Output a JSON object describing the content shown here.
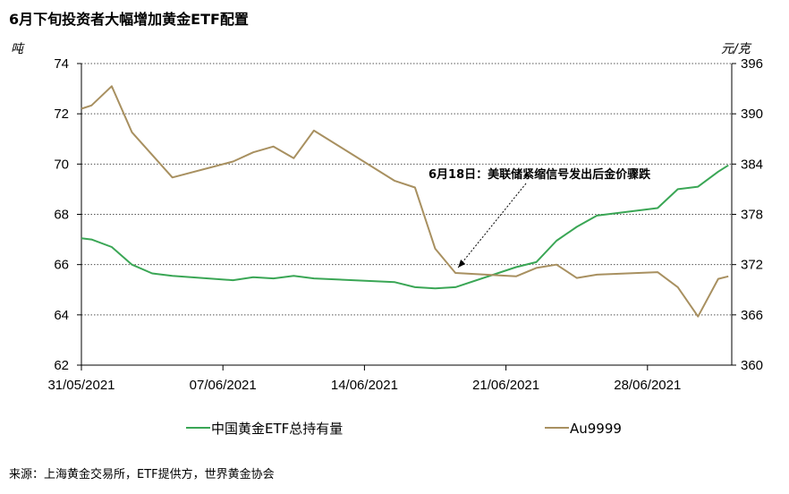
{
  "chart_data": {
    "type": "line",
    "title": "6月下旬投资者大幅增加黄金ETF配置",
    "ylabel_left": "吨",
    "ylabel_right": "元/克",
    "y_left_range": [
      62,
      74
    ],
    "y_left_ticks": [
      "62",
      "64",
      "66",
      "68",
      "70",
      "72",
      "74"
    ],
    "y_right_range": [
      360,
      396
    ],
    "y_right_ticks": [
      "360",
      "366",
      "372",
      "378",
      "384",
      "390",
      "396"
    ],
    "x_range": [
      0,
      31
    ],
    "x_ticks": [
      {
        "day": 0,
        "label": "31/05/2021"
      },
      {
        "day": 7,
        "label": "07/06/2021"
      },
      {
        "day": 14,
        "label": "14/06/2021"
      },
      {
        "day": 21,
        "label": "21/06/2021"
      },
      {
        "day": 28,
        "label": "28/06/2021"
      }
    ],
    "grid": "horizontal-dotted",
    "legend_position": "bottom",
    "series": [
      {
        "name": "中国黄金ETF总持有量",
        "axis": "left",
        "color": "#3aa655",
        "points": [
          [
            0,
            67.05
          ],
          [
            0.5,
            67.0
          ],
          [
            1.5,
            66.7
          ],
          [
            2.5,
            66.0
          ],
          [
            3.5,
            65.65
          ],
          [
            4.5,
            65.55
          ],
          [
            7.5,
            65.38
          ],
          [
            8.5,
            65.5
          ],
          [
            9.5,
            65.45
          ],
          [
            10.5,
            65.55
          ],
          [
            11.5,
            65.45
          ],
          [
            15.5,
            65.3
          ],
          [
            16.5,
            65.1
          ],
          [
            17.5,
            65.05
          ],
          [
            18.5,
            65.1
          ],
          [
            21.5,
            65.9
          ],
          [
            22.5,
            66.1
          ],
          [
            23.5,
            66.95
          ],
          [
            24.5,
            67.5
          ],
          [
            25.5,
            67.95
          ],
          [
            28.5,
            68.25
          ],
          [
            29.5,
            69.0
          ],
          [
            30.5,
            69.1
          ],
          [
            31.5,
            69.7
          ],
          [
            32,
            69.95
          ]
        ]
      },
      {
        "name": "Au9999",
        "axis": "right",
        "color": "#a89060",
        "points": [
          [
            0,
            390.6
          ],
          [
            0.5,
            391.0
          ],
          [
            1.5,
            393.3
          ],
          [
            2.5,
            387.8
          ],
          [
            4.5,
            382.4
          ],
          [
            7.5,
            384.3
          ],
          [
            8.5,
            385.4
          ],
          [
            9.5,
            386.1
          ],
          [
            10.5,
            384.7
          ],
          [
            11.5,
            388.0
          ],
          [
            15.5,
            382.0
          ],
          [
            16.5,
            381.2
          ],
          [
            17.5,
            373.9
          ],
          [
            18.5,
            371.0
          ],
          [
            21.5,
            370.6
          ],
          [
            22.5,
            371.6
          ],
          [
            23.5,
            372.0
          ],
          [
            24.5,
            370.4
          ],
          [
            25.5,
            370.8
          ],
          [
            28.5,
            371.1
          ],
          [
            29.5,
            369.3
          ],
          [
            30.5,
            365.8
          ],
          [
            31.5,
            370.3
          ],
          [
            32,
            370.6
          ]
        ]
      }
    ],
    "annotations": [
      {
        "text": "6月18日：美联储紧缩信号发出后金价骤跌",
        "day": 18.5,
        "value": 371.0,
        "axis": "right"
      }
    ]
  },
  "source": "来源：上海黄金交易所，ETF提供方，世界黄金协会"
}
